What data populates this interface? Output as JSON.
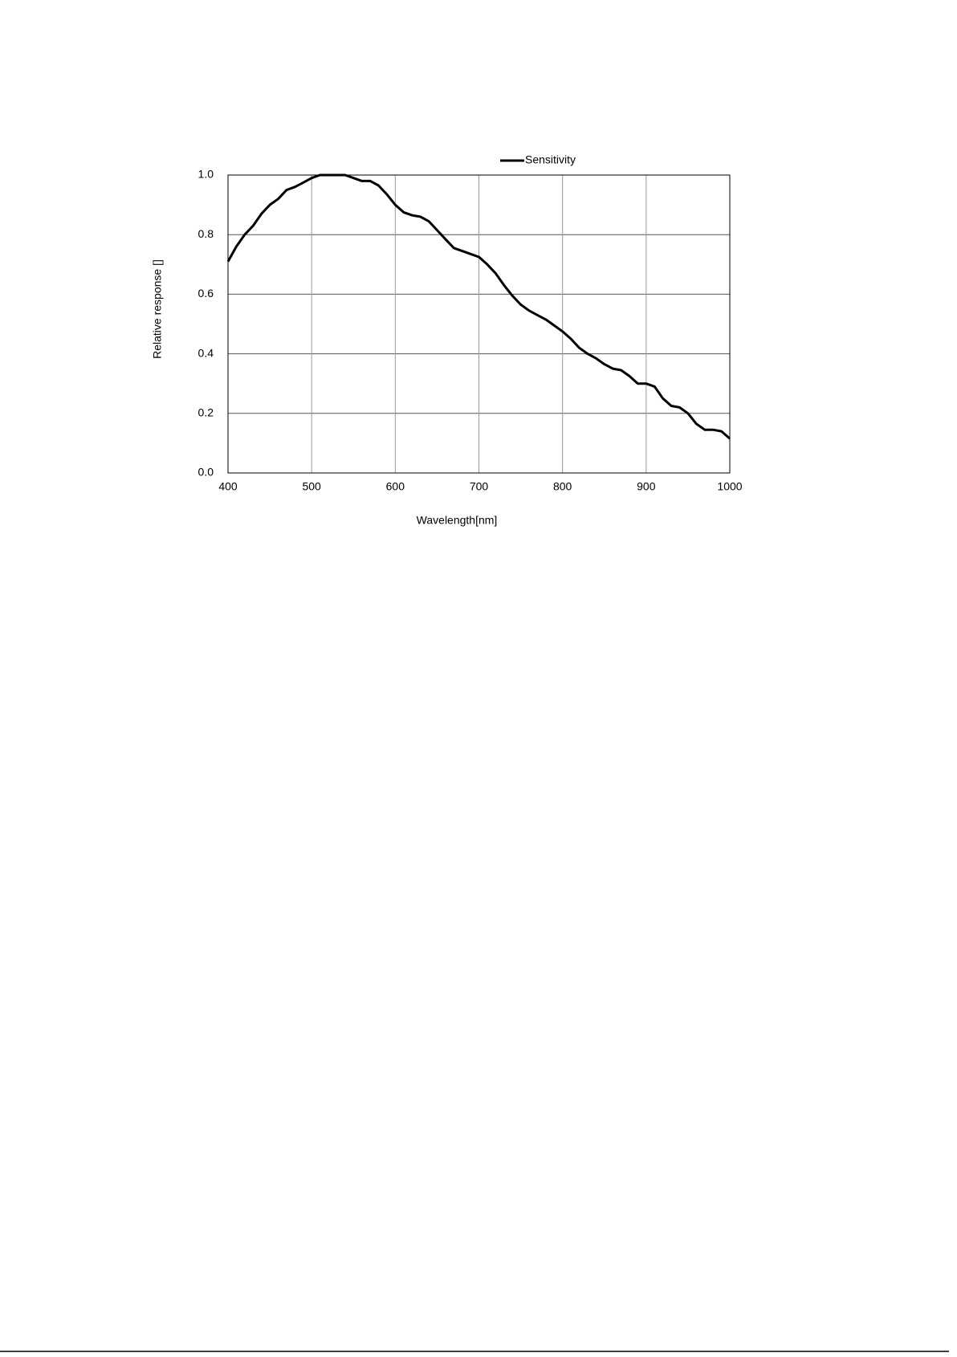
{
  "chart_data": {
    "type": "line",
    "x_label": "Wavelength[nm]",
    "y_label": "Relative response []",
    "x": [
      400,
      410,
      420,
      430,
      440,
      450,
      460,
      470,
      480,
      490,
      500,
      510,
      520,
      530,
      540,
      550,
      560,
      570,
      580,
      590,
      600,
      610,
      620,
      630,
      640,
      650,
      660,
      670,
      680,
      690,
      700,
      710,
      720,
      730,
      740,
      750,
      760,
      770,
      780,
      790,
      800,
      810,
      820,
      830,
      840,
      850,
      860,
      870,
      880,
      890,
      900,
      910,
      920,
      930,
      940,
      950,
      960,
      970,
      980,
      990,
      1000
    ],
    "series": [
      {
        "name": "Sensitivity",
        "color": "#000000",
        "values": [
          0.71,
          0.76,
          0.8,
          0.83,
          0.87,
          0.9,
          0.92,
          0.95,
          0.96,
          0.975,
          0.99,
          1.0,
          1.0,
          1.0,
          1.0,
          0.99,
          0.98,
          0.98,
          0.965,
          0.935,
          0.9,
          0.875,
          0.865,
          0.86,
          0.845,
          0.815,
          0.785,
          0.755,
          0.745,
          0.735,
          0.725,
          0.7,
          0.67,
          0.63,
          0.595,
          0.565,
          0.545,
          0.53,
          0.515,
          0.495,
          0.475,
          0.45,
          0.42,
          0.4,
          0.385,
          0.365,
          0.35,
          0.345,
          0.325,
          0.3,
          0.3,
          0.29,
          0.25,
          0.225,
          0.22,
          0.2,
          0.165,
          0.145,
          0.145,
          0.14,
          0.115
        ]
      }
    ],
    "xlim": [
      400,
      1000
    ],
    "xticks": [
      400,
      500,
      600,
      700,
      800,
      900,
      1000
    ],
    "ylim": [
      0,
      1
    ],
    "yticks": [
      {
        "value": 0,
        "label": "0.0"
      },
      0.2,
      0.4,
      0.6,
      0.8,
      {
        "value": 1,
        "label": "1.0"
      }
    ],
    "grid": true,
    "legend": "top"
  }
}
